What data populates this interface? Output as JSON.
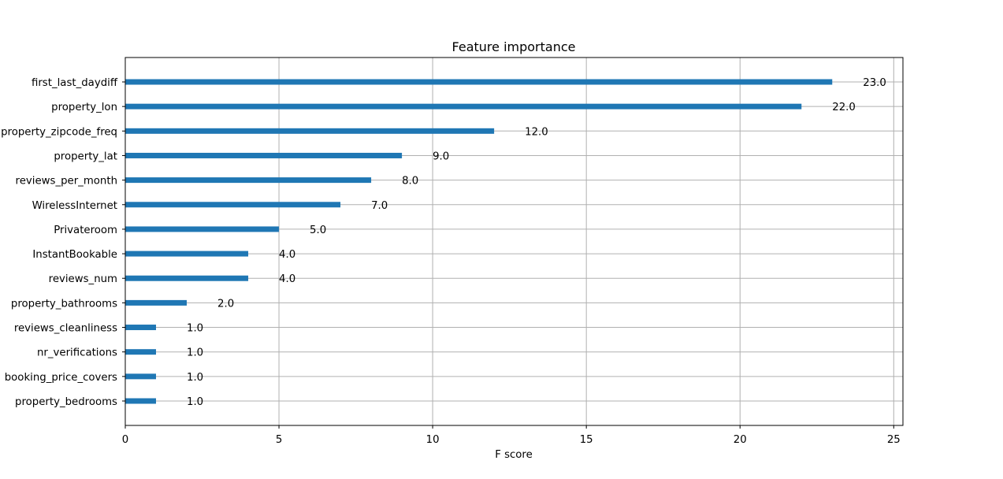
{
  "chart_data": {
    "type": "bar",
    "orientation": "horizontal",
    "title": "Feature importance",
    "xlabel": "F score",
    "ylabel": "",
    "xlim": [
      0,
      25.3
    ],
    "xticks": [
      0,
      5,
      10,
      15,
      20,
      25
    ],
    "grid": true,
    "bar_color": "#1f77b4",
    "grid_color": "#b0b0b0",
    "categories": [
      "first_last_daydiff",
      "property_lon",
      "property_zipcode_freq",
      "property_lat",
      "reviews_per_month",
      "WirelessInternet",
      "Privateroom",
      "InstantBookable",
      "reviews_num",
      "property_bathrooms",
      "reviews_cleanliness",
      "nr_verifications",
      "booking_price_covers",
      "property_bedrooms"
    ],
    "values": [
      23,
      22,
      12,
      9,
      8,
      7,
      5,
      4,
      4,
      2,
      1,
      1,
      1,
      1
    ],
    "value_labels": [
      "23.0",
      "22.0",
      "12.0",
      "9.0",
      "8.0",
      "7.0",
      "5.0",
      "4.0",
      "4.0",
      "2.0",
      "1.0",
      "1.0",
      "1.0",
      "1.0"
    ]
  }
}
